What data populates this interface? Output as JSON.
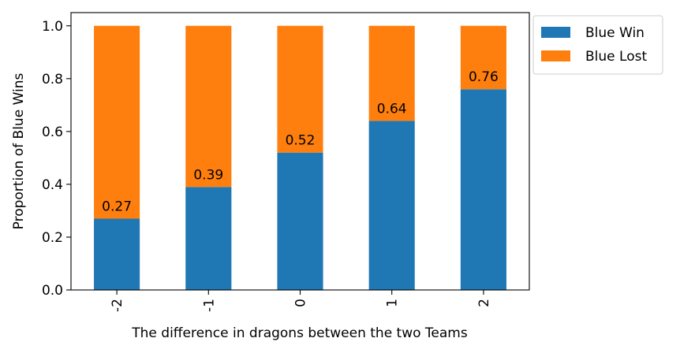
{
  "chart_data": {
    "type": "bar",
    "stacked": true,
    "categories": [
      "-2",
      "-1",
      "0",
      "1",
      "2"
    ],
    "series": [
      {
        "name": "Blue Win",
        "values": [
          0.27,
          0.39,
          0.52,
          0.64,
          0.76
        ],
        "color": "#1f77b4"
      },
      {
        "name": "Blue Lost",
        "values": [
          0.73,
          0.61,
          0.48,
          0.36,
          0.24
        ],
        "color": "#ff7f0e"
      }
    ],
    "data_labels": [
      "0.27",
      "0.39",
      "0.52",
      "0.64",
      "0.76"
    ],
    "xlabel": "The difference in dragons between the two Teams",
    "ylabel": "Proportion of Blue Wins",
    "ylim": [
      0,
      1.05
    ],
    "yticks": [
      "0.0",
      "0.2",
      "0.4",
      "0.6",
      "0.8",
      "1.0"
    ],
    "xtick_rotation": "vertical",
    "grid": false,
    "legend_position": "outside-top-right"
  }
}
